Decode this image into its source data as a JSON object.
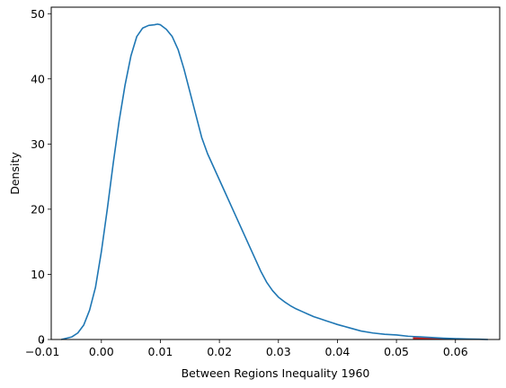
{
  "chart_data": {
    "type": "area",
    "title": "",
    "xlabel": "Between Regions Inequality 1960",
    "ylabel": "Density",
    "xlim": [
      -0.0085,
      0.0675
    ],
    "ylim": [
      0,
      51
    ],
    "xticks": [
      -0.01,
      0.0,
      0.01,
      0.02,
      0.03,
      0.04,
      0.05,
      0.06
    ],
    "xtick_labels": [
      "−0.01",
      "0.00",
      "0.01",
      "0.02",
      "0.03",
      "0.04",
      "0.05",
      "0.06"
    ],
    "yticks": [
      0,
      10,
      20,
      30,
      40,
      50
    ],
    "ytick_labels": [
      "0",
      "10",
      "20",
      "30",
      "40",
      "50"
    ],
    "grid": false,
    "series": [
      {
        "color": "#1f77b4",
        "x": [
          -0.0068,
          -0.005,
          -0.004,
          -0.003,
          -0.002,
          -0.001,
          0.0,
          0.001,
          0.002,
          0.003,
          0.004,
          0.005,
          0.006,
          0.007,
          0.008,
          0.009,
          0.0095,
          0.01,
          0.011,
          0.012,
          0.013,
          0.014,
          0.015,
          0.016,
          0.017,
          0.018,
          0.019,
          0.02,
          0.021,
          0.022,
          0.023,
          0.024,
          0.025,
          0.026,
          0.027,
          0.028,
          0.029,
          0.03,
          0.031,
          0.032,
          0.033,
          0.034,
          0.035,
          0.036,
          0.037,
          0.038,
          0.039,
          0.04,
          0.042,
          0.044,
          0.046,
          0.048,
          0.05,
          0.052,
          0.053,
          0.054,
          0.056,
          0.058,
          0.06,
          0.062,
          0.064,
          0.0655
        ],
        "y": [
          0.0,
          0.4,
          1.0,
          2.2,
          4.5,
          8.0,
          13.5,
          20.0,
          27.0,
          33.5,
          39.0,
          43.5,
          46.5,
          47.8,
          48.2,
          48.3,
          48.4,
          48.3,
          47.6,
          46.5,
          44.5,
          41.5,
          38.0,
          34.5,
          31.0,
          28.5,
          26.5,
          24.5,
          22.5,
          20.5,
          18.5,
          16.5,
          14.5,
          12.5,
          10.5,
          8.8,
          7.5,
          6.5,
          5.8,
          5.2,
          4.7,
          4.3,
          3.9,
          3.5,
          3.2,
          2.9,
          2.6,
          2.3,
          1.8,
          1.3,
          1.0,
          0.8,
          0.7,
          0.5,
          0.45,
          0.4,
          0.3,
          0.2,
          0.13,
          0.08,
          0.04,
          0.0
        ]
      }
    ],
    "shaded_region": {
      "color": "#d62728",
      "x_from": 0.0528,
      "x_to": 0.0655
    }
  }
}
